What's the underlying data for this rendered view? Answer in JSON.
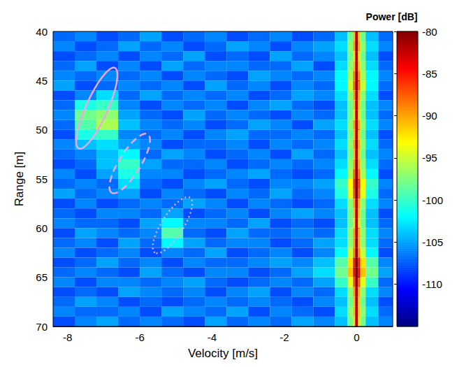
{
  "chart_data": {
    "type": "heatmap",
    "xlabel": "Velocity [m/s]",
    "ylabel": "Range [m]",
    "xlim": [
      -8.4,
      1
    ],
    "xticks": [
      -8,
      -6,
      -4,
      -2,
      0
    ],
    "ylim": [
      70,
      40
    ],
    "yticks": [
      40,
      45,
      50,
      55,
      60,
      65,
      70
    ],
    "grid": false,
    "x_bins": [
      -8.4,
      -7.8,
      -7.2,
      -6.6,
      -6.0,
      -5.4,
      -4.8,
      -4.2,
      -3.6,
      -3.0,
      -2.4,
      -1.8,
      -1.2,
      -0.6,
      -0.25,
      -0.1,
      -0.04,
      0.04,
      0.1,
      0.25,
      0.6,
      1.0
    ],
    "y_bins": [
      40,
      41,
      42,
      43,
      44,
      45,
      46,
      47,
      48,
      49,
      50,
      51,
      52,
      53,
      54,
      55,
      56,
      57,
      58,
      59,
      60,
      61,
      62,
      63,
      64,
      65,
      66,
      67,
      68,
      69,
      70
    ],
    "power": [
      [
        -107,
        -106,
        -108,
        -107,
        -105,
        -108,
        -107,
        -106,
        -108,
        -107,
        -106,
        -108,
        -107,
        -104,
        -98,
        -91,
        -82,
        -91,
        -98,
        -104,
        -107
      ],
      [
        -106,
        -108,
        -107,
        -105,
        -107,
        -106,
        -108,
        -107,
        -105,
        -106,
        -108,
        -106,
        -105,
        -103,
        -97,
        -90,
        -81,
        -90,
        -97,
        -103,
        -106
      ],
      [
        -108,
        -107,
        -106,
        -108,
        -106,
        -107,
        -105,
        -108,
        -107,
        -108,
        -105,
        -107,
        -106,
        -104,
        -98,
        -92,
        -82,
        -92,
        -98,
        -104,
        -108
      ],
      [
        -107,
        -105,
        -108,
        -106,
        -108,
        -105,
        -107,
        -106,
        -106,
        -107,
        -107,
        -105,
        -108,
        -103,
        -97,
        -91,
        -82,
        -91,
        -97,
        -103,
        -107
      ],
      [
        -106,
        -107,
        -106,
        -107,
        -106,
        -108,
        -106,
        -107,
        -108,
        -105,
        -106,
        -107,
        -106,
        -102,
        -96,
        -89,
        -81,
        -89,
        -96,
        -102,
        -106
      ],
      [
        -105,
        -108,
        -107,
        -106,
        -107,
        -106,
        -108,
        -105,
        -107,
        -106,
        -108,
        -106,
        -107,
        -102,
        -95,
        -88,
        -81,
        -88,
        -95,
        -102,
        -107
      ],
      [
        -108,
        -106,
        -103,
        -107,
        -105,
        -107,
        -106,
        -107,
        -106,
        -108,
        -107,
        -105,
        -106,
        -103,
        -97,
        -90,
        -82,
        -90,
        -97,
        -103,
        -108
      ],
      [
        -107,
        -101,
        -100,
        -106,
        -108,
        -106,
        -107,
        -106,
        -108,
        -106,
        -105,
        -107,
        -108,
        -104,
        -98,
        -91,
        -82,
        -91,
        -98,
        -104,
        -106
      ],
      [
        -106,
        -98,
        -97,
        -105,
        -107,
        -108,
        -105,
        -107,
        -106,
        -107,
        -108,
        -106,
        -107,
        -104,
        -98,
        -92,
        -82,
        -92,
        -98,
        -104,
        -107
      ],
      [
        -107,
        -99,
        -96,
        -104,
        -106,
        -107,
        -106,
        -108,
        -107,
        -105,
        -106,
        -108,
        -105,
        -103,
        -97,
        -90,
        -82,
        -90,
        -97,
        -103,
        -106
      ],
      [
        -108,
        -101,
        -100,
        -106,
        -107,
        -106,
        -108,
        -106,
        -105,
        -107,
        -107,
        -106,
        -107,
        -104,
        -98,
        -91,
        -82,
        -91,
        -98,
        -104,
        -108
      ],
      [
        -106,
        -104,
        -103,
        -105,
        -106,
        -108,
        -107,
        -107,
        -106,
        -108,
        -106,
        -107,
        -106,
        -103,
        -97,
        -90,
        -81,
        -90,
        -97,
        -103,
        -107
      ],
      [
        -107,
        -106,
        -104,
        -102,
        -107,
        -105,
        -106,
        -108,
        -107,
        -106,
        -108,
        -105,
        -107,
        -104,
        -98,
        -91,
        -82,
        -91,
        -98,
        -104,
        -106
      ],
      [
        -108,
        -107,
        -104,
        -100,
        -105,
        -107,
        -107,
        -106,
        -108,
        -107,
        -106,
        -107,
        -106,
        -103,
        -97,
        -90,
        -81,
        -90,
        -97,
        -103,
        -107
      ],
      [
        -106,
        -108,
        -105,
        -101,
        -106,
        -106,
        -108,
        -107,
        -106,
        -105,
        -107,
        -108,
        -107,
        -102,
        -96,
        -88,
        -81,
        -88,
        -96,
        -102,
        -108
      ],
      [
        -107,
        -106,
        -107,
        -103,
        -107,
        -108,
        -106,
        -105,
        -107,
        -108,
        -106,
        -106,
        -105,
        -100,
        -93,
        -86,
        -80,
        -86,
        -93,
        -100,
        -106
      ],
      [
        -105,
        -107,
        -106,
        -105,
        -108,
        -106,
        -107,
        -108,
        -106,
        -107,
        -105,
        -107,
        -106,
        -101,
        -94,
        -87,
        -80,
        -87,
        -94,
        -101,
        -107
      ],
      [
        -108,
        -106,
        -108,
        -107,
        -106,
        -107,
        -105,
        -106,
        -108,
        -106,
        -107,
        -108,
        -107,
        -103,
        -97,
        -90,
        -82,
        -90,
        -97,
        -103,
        -106
      ],
      [
        -107,
        -108,
        -106,
        -106,
        -107,
        -105,
        -108,
        -107,
        -106,
        -108,
        -106,
        -105,
        -106,
        -104,
        -98,
        -91,
        -82,
        -91,
        -98,
        -104,
        -108
      ],
      [
        -106,
        -107,
        -107,
        -108,
        -105,
        -102,
        -106,
        -106,
        -107,
        -105,
        -108,
        -107,
        -108,
        -104,
        -98,
        -92,
        -82,
        -92,
        -98,
        -104,
        -107
      ],
      [
        -108,
        -105,
        -106,
        -107,
        -106,
        -99,
        -107,
        -108,
        -105,
        -107,
        -107,
        -106,
        -107,
        -103,
        -97,
        -90,
        -82,
        -90,
        -97,
        -103,
        -106
      ],
      [
        -107,
        -106,
        -108,
        -105,
        -107,
        -102,
        -105,
        -107,
        -106,
        -106,
        -108,
        -107,
        -105,
        -103,
        -97,
        -90,
        -81,
        -90,
        -97,
        -103,
        -107
      ],
      [
        -106,
        -108,
        -107,
        -106,
        -108,
        -106,
        -107,
        -105,
        -108,
        -107,
        -106,
        -108,
        -106,
        -102,
        -95,
        -89,
        -81,
        -89,
        -95,
        -102,
        -108
      ],
      [
        -108,
        -107,
        -105,
        -107,
        -106,
        -108,
        -106,
        -107,
        -107,
        -106,
        -105,
        -106,
        -104,
        -99,
        -92,
        -85,
        -80,
        -85,
        -92,
        -99,
        -106
      ],
      [
        -107,
        -106,
        -107,
        -108,
        -105,
        -107,
        -108,
        -106,
        -106,
        -108,
        -107,
        -105,
        -103,
        -98,
        -91,
        -84,
        -80,
        -84,
        -91,
        -98,
        -105
      ],
      [
        -106,
        -108,
        -106,
        -106,
        -107,
        -106,
        -105,
        -107,
        -108,
        -107,
        -106,
        -107,
        -105,
        -100,
        -94,
        -87,
        -81,
        -87,
        -94,
        -100,
        -107
      ],
      [
        -108,
        -107,
        -108,
        -105,
        -106,
        -107,
        -106,
        -108,
        -106,
        -105,
        -108,
        -106,
        -107,
        -103,
        -97,
        -90,
        -82,
        -90,
        -97,
        -103,
        -106
      ],
      [
        -107,
        -105,
        -106,
        -108,
        -107,
        -108,
        -107,
        -106,
        -107,
        -106,
        -107,
        -108,
        -106,
        -104,
        -98,
        -91,
        -82,
        -91,
        -98,
        -104,
        -108
      ],
      [
        -106,
        -107,
        -107,
        -106,
        -108,
        -105,
        -106,
        -107,
        -105,
        -108,
        -106,
        -107,
        -108,
        -103,
        -97,
        -91,
        -82,
        -91,
        -97,
        -103,
        -107
      ],
      [
        -108,
        -106,
        -105,
        -107,
        -106,
        -107,
        -108,
        -105,
        -107,
        -106,
        -107,
        -105,
        -106,
        -104,
        -98,
        -92,
        -82,
        -92,
        -98,
        -104,
        -106
      ]
    ],
    "colorbar": {
      "label": "Power [dB]",
      "lim": [
        -115,
        -80
      ],
      "ticks": [
        -110,
        -105,
        -100,
        -95,
        -90,
        -85,
        -80
      ]
    },
    "annotations": [
      {
        "type": "ellipse",
        "major_axis": [
          [
            -6.69,
            43.7
          ],
          [
            -7.69,
            51.9
          ]
        ],
        "minor_radius": 0.3,
        "line_style": "solid",
        "color": "#eaa8e6"
      },
      {
        "type": "ellipse",
        "major_axis": [
          [
            -5.78,
            50.45
          ],
          [
            -6.78,
            56.4
          ]
        ],
        "minor_radius": 0.3,
        "line_style": "dashed",
        "color": "#eaa8e6"
      },
      {
        "type": "ellipse",
        "major_axis": [
          [
            -4.61,
            56.9
          ],
          [
            -5.58,
            62.5
          ]
        ],
        "minor_radius": 0.3,
        "line_style": "dotted",
        "color": "#eaa8e6"
      }
    ]
  }
}
